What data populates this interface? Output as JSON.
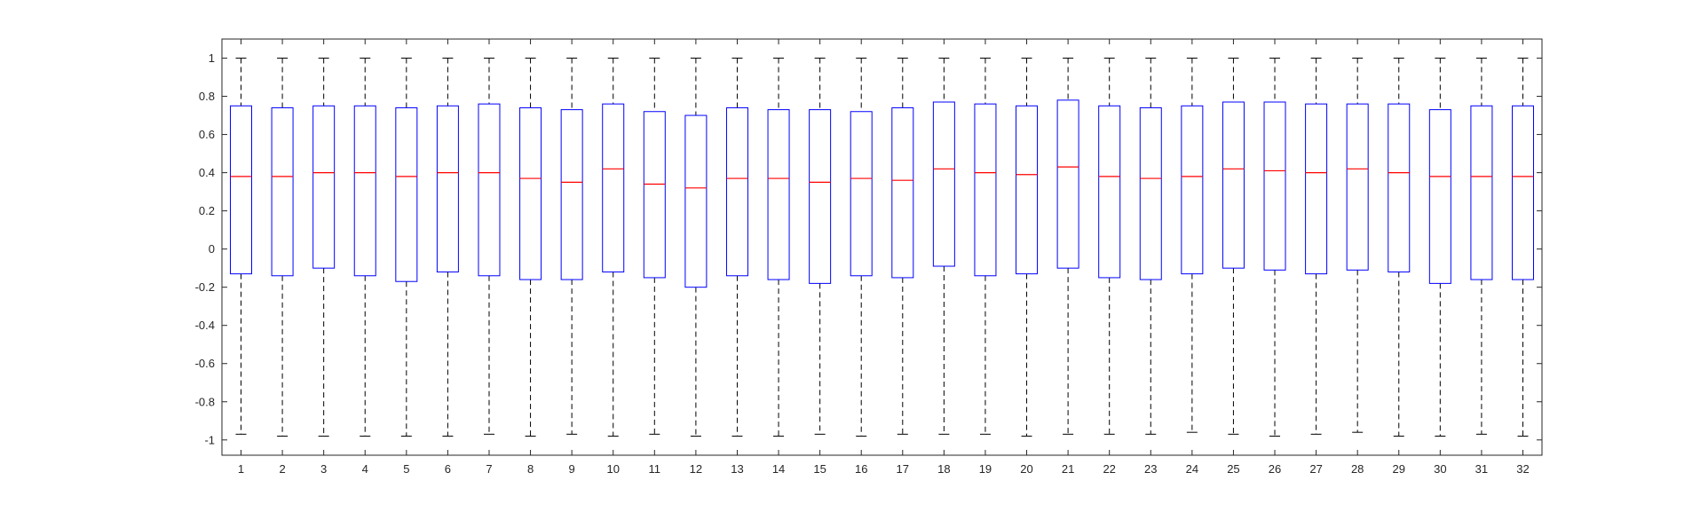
{
  "chart_data": {
    "type": "boxplot",
    "title": "",
    "xlabel": "",
    "ylabel": "",
    "ylim": [
      -1.08,
      1.1
    ],
    "grid": false,
    "y_ticks": [
      -1,
      -0.8,
      -0.6,
      -0.4,
      -0.2,
      0,
      0.2,
      0.4,
      0.6,
      0.8,
      1
    ],
    "y_tick_labels": [
      "-1",
      "-0.8",
      "-0.6",
      "-0.4",
      "-0.2",
      "0",
      "0.2",
      "0.4",
      "0.6",
      "0.8",
      "1"
    ],
    "categories": [
      "1",
      "2",
      "3",
      "4",
      "5",
      "6",
      "7",
      "8",
      "9",
      "10",
      "11",
      "12",
      "13",
      "14",
      "15",
      "16",
      "17",
      "18",
      "19",
      "20",
      "21",
      "22",
      "23",
      "24",
      "25",
      "26",
      "27",
      "28",
      "29",
      "30",
      "31",
      "32"
    ],
    "boxes": [
      {
        "whisker_low": -0.97,
        "q1": -0.13,
        "median": 0.38,
        "q3": 0.75,
        "whisker_high": 1.0
      },
      {
        "whisker_low": -0.98,
        "q1": -0.14,
        "median": 0.38,
        "q3": 0.74,
        "whisker_high": 1.0
      },
      {
        "whisker_low": -0.98,
        "q1": -0.1,
        "median": 0.4,
        "q3": 0.75,
        "whisker_high": 1.0
      },
      {
        "whisker_low": -0.98,
        "q1": -0.14,
        "median": 0.4,
        "q3": 0.75,
        "whisker_high": 1.0
      },
      {
        "whisker_low": -0.98,
        "q1": -0.17,
        "median": 0.38,
        "q3": 0.74,
        "whisker_high": 1.0
      },
      {
        "whisker_low": -0.98,
        "q1": -0.12,
        "median": 0.4,
        "q3": 0.75,
        "whisker_high": 1.0
      },
      {
        "whisker_low": -0.97,
        "q1": -0.14,
        "median": 0.4,
        "q3": 0.76,
        "whisker_high": 1.0
      },
      {
        "whisker_low": -0.98,
        "q1": -0.16,
        "median": 0.37,
        "q3": 0.74,
        "whisker_high": 1.0
      },
      {
        "whisker_low": -0.97,
        "q1": -0.16,
        "median": 0.35,
        "q3": 0.73,
        "whisker_high": 1.0
      },
      {
        "whisker_low": -0.98,
        "q1": -0.12,
        "median": 0.42,
        "q3": 0.76,
        "whisker_high": 1.0
      },
      {
        "whisker_low": -0.97,
        "q1": -0.15,
        "median": 0.34,
        "q3": 0.72,
        "whisker_high": 1.0
      },
      {
        "whisker_low": -0.98,
        "q1": -0.2,
        "median": 0.32,
        "q3": 0.7,
        "whisker_high": 1.0
      },
      {
        "whisker_low": -0.98,
        "q1": -0.14,
        "median": 0.37,
        "q3": 0.74,
        "whisker_high": 1.0
      },
      {
        "whisker_low": -0.98,
        "q1": -0.16,
        "median": 0.37,
        "q3": 0.73,
        "whisker_high": 1.0
      },
      {
        "whisker_low": -0.97,
        "q1": -0.18,
        "median": 0.35,
        "q3": 0.73,
        "whisker_high": 1.0
      },
      {
        "whisker_low": -0.98,
        "q1": -0.14,
        "median": 0.37,
        "q3": 0.72,
        "whisker_high": 1.0
      },
      {
        "whisker_low": -0.97,
        "q1": -0.15,
        "median": 0.36,
        "q3": 0.74,
        "whisker_high": 1.0
      },
      {
        "whisker_low": -0.97,
        "q1": -0.09,
        "median": 0.42,
        "q3": 0.77,
        "whisker_high": 1.0
      },
      {
        "whisker_low": -0.97,
        "q1": -0.14,
        "median": 0.4,
        "q3": 0.76,
        "whisker_high": 1.0
      },
      {
        "whisker_low": -0.98,
        "q1": -0.13,
        "median": 0.39,
        "q3": 0.75,
        "whisker_high": 1.0
      },
      {
        "whisker_low": -0.97,
        "q1": -0.1,
        "median": 0.43,
        "q3": 0.78,
        "whisker_high": 1.0
      },
      {
        "whisker_low": -0.97,
        "q1": -0.15,
        "median": 0.38,
        "q3": 0.75,
        "whisker_high": 1.0
      },
      {
        "whisker_low": -0.97,
        "q1": -0.16,
        "median": 0.37,
        "q3": 0.74,
        "whisker_high": 1.0
      },
      {
        "whisker_low": -0.96,
        "q1": -0.13,
        "median": 0.38,
        "q3": 0.75,
        "whisker_high": 1.0
      },
      {
        "whisker_low": -0.97,
        "q1": -0.1,
        "median": 0.42,
        "q3": 0.77,
        "whisker_high": 1.0
      },
      {
        "whisker_low": -0.98,
        "q1": -0.11,
        "median": 0.41,
        "q3": 0.77,
        "whisker_high": 1.0
      },
      {
        "whisker_low": -0.97,
        "q1": -0.13,
        "median": 0.4,
        "q3": 0.76,
        "whisker_high": 1.0
      },
      {
        "whisker_low": -0.96,
        "q1": -0.11,
        "median": 0.42,
        "q3": 0.76,
        "whisker_high": 1.0
      },
      {
        "whisker_low": -0.98,
        "q1": -0.12,
        "median": 0.4,
        "q3": 0.76,
        "whisker_high": 1.0
      },
      {
        "whisker_low": -0.98,
        "q1": -0.18,
        "median": 0.38,
        "q3": 0.73,
        "whisker_high": 1.0
      },
      {
        "whisker_low": -0.97,
        "q1": -0.16,
        "median": 0.38,
        "q3": 0.75,
        "whisker_high": 1.0
      },
      {
        "whisker_low": -0.98,
        "q1": -0.16,
        "median": 0.38,
        "q3": 0.75,
        "whisker_high": 1.0
      }
    ],
    "colors": {
      "box": "#0000ff",
      "median": "#ff0000",
      "whisker": "#000000",
      "axis": "#262626"
    }
  }
}
